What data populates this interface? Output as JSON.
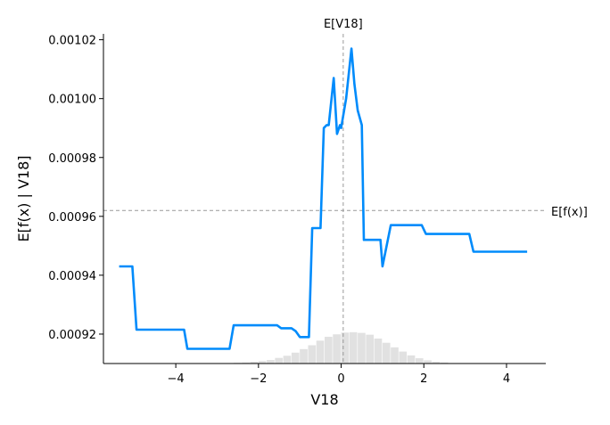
{
  "chart_data": {
    "type": "line",
    "xlabel": "V18",
    "ylabel": "E[f(x) | V18]",
    "xlim": [
      -5.75,
      4.95
    ],
    "ylim": [
      0.00091,
      0.001022
    ],
    "xticks": [
      -4,
      -2,
      0,
      2,
      4
    ],
    "xtick_labels": [
      "−4",
      "−2",
      "0",
      "2",
      "4"
    ],
    "yticks": [
      0.00092,
      0.00094,
      0.00096,
      0.00098,
      0.001,
      0.00102
    ],
    "ytick_labels": [
      "0.00092",
      "0.00094",
      "0.00096",
      "0.00098",
      "0.00100",
      "0.00102"
    ],
    "grid": false,
    "reference_lines": {
      "expected_value_label": "E[f(x)]",
      "expected_value_y": 0.000962,
      "feature_mean_label": "E[V18]",
      "feature_mean_x": 0.05
    },
    "colors": {
      "line": "#008bfb",
      "histogram": "#e1e1e1",
      "reference": "#999999"
    },
    "series": [
      {
        "x": [
          -5.37,
          -5.05,
          -4.95,
          -3.8,
          -3.72,
          -3.55,
          -2.7,
          -2.6,
          -1.55,
          -1.45,
          -1.2,
          -1.1,
          -1.0,
          -0.78,
          -0.7,
          -0.5,
          -0.42,
          -0.35,
          -0.3,
          -0.18,
          -0.1,
          -0.03,
          0.0,
          0.12,
          0.25,
          0.32,
          0.4,
          0.5,
          0.55,
          0.7,
          0.95,
          1.0,
          1.2,
          1.95,
          2.05,
          3.1,
          3.2,
          4.5
        ],
        "y": [
          0.000943,
          0.000943,
          0.0009215,
          0.0009215,
          0.000915,
          0.000915,
          0.000915,
          0.000923,
          0.000923,
          0.000922,
          0.000922,
          0.000921,
          0.000919,
          0.000919,
          0.000956,
          0.000956,
          0.00099,
          0.000991,
          0.000991,
          0.001007,
          0.000988,
          0.000991,
          0.00099,
          0.001,
          0.001017,
          0.001005,
          0.000996,
          0.000991,
          0.000952,
          0.000952,
          0.000952,
          0.000943,
          0.000957,
          0.000957,
          0.000954,
          0.000954,
          0.000948,
          0.000948
        ]
      }
    ],
    "histogram": {
      "bin_edges": [
        -2.6,
        -2.4,
        -2.2,
        -2.0,
        -1.8,
        -1.6,
        -1.4,
        -1.2,
        -1.0,
        -0.8,
        -0.6,
        -0.4,
        -0.2,
        0.0,
        0.2,
        0.4,
        0.6,
        0.8,
        1.0,
        1.2,
        1.4,
        1.6,
        1.8,
        2.0,
        2.2,
        2.4,
        2.6
      ],
      "counts": [
        0.2,
        0.3,
        0.5,
        0.7,
        1.0,
        1.6,
        2.2,
        3.1,
        4.1,
        5.2,
        6.5,
        7.6,
        8.3,
        8.8,
        8.9,
        8.7,
        8.2,
        7.1,
        5.9,
        4.6,
        3.4,
        2.3,
        1.5,
        0.9,
        0.5,
        0.3
      ]
    }
  }
}
